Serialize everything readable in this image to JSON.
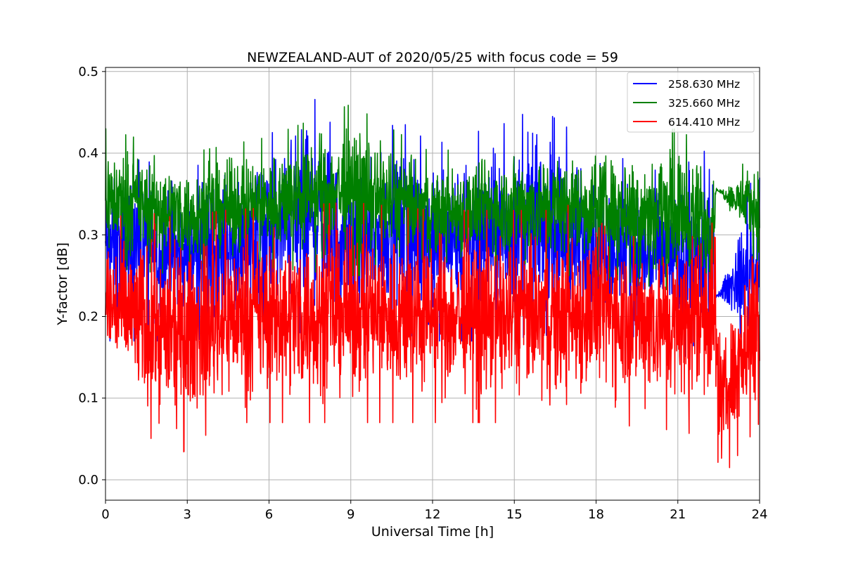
{
  "chart_data": {
    "type": "line",
    "title": "NEWZEALAND-AUT of 2020/05/25 with focus code = 59",
    "xlabel": "Universal Time [h]",
    "ylabel": "Y-factor [dB]",
    "xlim": [
      0,
      24
    ],
    "ylim": [
      -0.025,
      0.505
    ],
    "xticks": [
      0,
      3,
      6,
      9,
      12,
      15,
      18,
      21,
      24
    ],
    "xtick_labels": [
      "0",
      "3",
      "6",
      "9",
      "12",
      "15",
      "18",
      "21",
      "24"
    ],
    "yticks": [
      0.0,
      0.1,
      0.2,
      0.3,
      0.4,
      0.5
    ],
    "ytick_labels": [
      "0.0",
      "0.1",
      "0.2",
      "0.3",
      "0.4",
      "0.5"
    ],
    "grid": true,
    "legend_position": "upper-right",
    "series": [
      {
        "name": "258.630 MHz",
        "color": "#0000ff",
        "profile_x": [
          0,
          3,
          6,
          7.4,
          9,
          10.8,
          12,
          15,
          15.8,
          17,
          18,
          21,
          22.3,
          22.4,
          24
        ],
        "profile_min": [
          0.17,
          0.17,
          0.18,
          0.18,
          0.17,
          0.18,
          0.17,
          0.17,
          0.18,
          0.17,
          0.17,
          0.16,
          0.12,
          0.23,
          0.13
        ],
        "profile_max": [
          0.4,
          0.38,
          0.42,
          0.48,
          0.4,
          0.44,
          0.41,
          0.44,
          0.46,
          0.43,
          0.4,
          0.38,
          0.41,
          0.22,
          0.4
        ]
      },
      {
        "name": "325.660 MHz",
        "color": "#008000",
        "profile_x": [
          0,
          3,
          6,
          9,
          12,
          15,
          18,
          21,
          22.3,
          22.4,
          24
        ],
        "profile_min": [
          0.26,
          0.25,
          0.26,
          0.25,
          0.25,
          0.25,
          0.25,
          0.23,
          0.22,
          0.36,
          0.25
        ],
        "profile_max": [
          0.43,
          0.4,
          0.42,
          0.46,
          0.4,
          0.42,
          0.42,
          0.43,
          0.4,
          0.35,
          0.41
        ]
      },
      {
        "name": "614.410 MHz",
        "color": "#ff0000",
        "profile_x": [
          0,
          1.2,
          2.7,
          4.3,
          9,
          12,
          15,
          16.5,
          18,
          21,
          22.3,
          22.6,
          24
        ],
        "profile_min": [
          0.11,
          0.06,
          0.03,
          0.07,
          0.07,
          0.07,
          0.07,
          0.06,
          0.07,
          0.06,
          0.05,
          0.0,
          0.07
        ],
        "profile_max": [
          0.33,
          0.33,
          0.32,
          0.33,
          0.34,
          0.33,
          0.33,
          0.33,
          0.35,
          0.32,
          0.39,
          0.18,
          0.37
        ]
      }
    ]
  }
}
